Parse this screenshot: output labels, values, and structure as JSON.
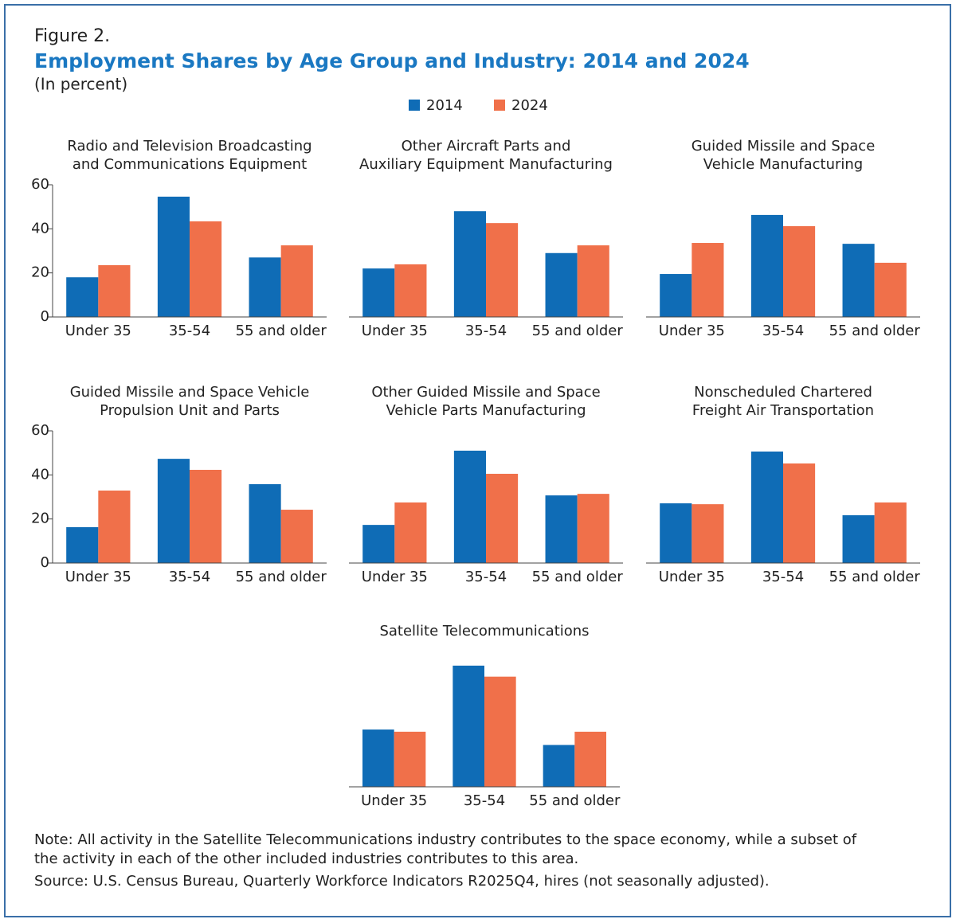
{
  "figure_label": "Figure 2.",
  "title": "Employment Shares by Age Group and Industry: 2014 and 2024",
  "subtitle": "(In percent)",
  "legend": [
    {
      "name": "2014",
      "color": "#0f6cb6"
    },
    {
      "name": "2024",
      "color": "#f0704a"
    }
  ],
  "note": [
    "Note: All activity in the Satellite Telecommunications industry contributes to the space economy, while a subset of",
    "the activity in each of the other included industries contributes to this area."
  ],
  "source": "Source: U.S. Census Bureau, Quarterly Workforce Indicators R2025Q4, hires (not seasonally adjusted).",
  "chart_data": [
    {
      "type": "bar",
      "title": [
        "Radio and Television Broadcasting",
        "and Communications Equipment"
      ],
      "categories": [
        "Under 35",
        "35-54",
        "55 and older"
      ],
      "series": [
        {
          "values": [
            18,
            54.6,
            27
          ]
        },
        {
          "values": [
            23.5,
            43.4,
            32.5
          ]
        }
      ],
      "ylim": [
        0,
        60
      ],
      "yticks": [
        0,
        20,
        40,
        60
      ]
    },
    {
      "type": "bar",
      "title": [
        "Other Aircraft Parts and",
        "Auxiliary Equipment Manufacturing"
      ],
      "categories": [
        "Under 35",
        "35-54",
        "55 and older"
      ],
      "series": [
        {
          "values": [
            22,
            48,
            29
          ]
        },
        {
          "values": [
            23.9,
            42.6,
            32.5
          ]
        }
      ],
      "ylim": [
        0,
        60
      ]
    },
    {
      "type": "bar",
      "title": [
        "Guided Missile and Space",
        "Vehicle Manufacturing"
      ],
      "categories": [
        "Under 35",
        "35-54",
        "55 and older"
      ],
      "series": [
        {
          "values": [
            19.5,
            46.3,
            33.2
          ]
        },
        {
          "values": [
            33.6,
            41.2,
            24.6
          ]
        }
      ],
      "ylim": [
        0,
        60
      ]
    },
    {
      "type": "bar",
      "title": [
        "Guided Missile and Space Vehicle",
        "Propulsion Unit and Parts"
      ],
      "categories": [
        "Under 35",
        "35-54",
        "55 and older"
      ],
      "series": [
        {
          "values": [
            16.3,
            47.3,
            35.8
          ]
        },
        {
          "values": [
            32.9,
            42.3,
            24.2
          ]
        }
      ],
      "ylim": [
        0,
        60
      ],
      "yticks": [
        0,
        20,
        40,
        60
      ]
    },
    {
      "type": "bar",
      "title": [
        "Other Guided Missile and Space",
        "Vehicle Parts Manufacturing"
      ],
      "categories": [
        "Under 35",
        "35-54",
        "55 and older"
      ],
      "series": [
        {
          "values": [
            17.3,
            51,
            30.7
          ]
        },
        {
          "values": [
            27.5,
            40.5,
            31.4
          ]
        }
      ],
      "ylim": [
        0,
        60
      ]
    },
    {
      "type": "bar",
      "title": [
        "Nonscheduled Chartered",
        "Freight Air Transportation"
      ],
      "categories": [
        "Under 35",
        "35-54",
        "55 and older"
      ],
      "series": [
        {
          "values": [
            27.1,
            50.6,
            21.7
          ]
        },
        {
          "values": [
            26.7,
            45.2,
            27.5
          ]
        }
      ],
      "ylim": [
        0,
        60
      ]
    },
    {
      "type": "bar",
      "title": [
        "Satellite Telecommunications"
      ],
      "categories": [
        "Under 35",
        "35-54",
        "55 and older"
      ],
      "series": [
        {
          "values": [
            26,
            55,
            19
          ]
        },
        {
          "values": [
            25,
            50,
            25
          ]
        }
      ],
      "ylim": [
        0,
        60
      ]
    }
  ]
}
